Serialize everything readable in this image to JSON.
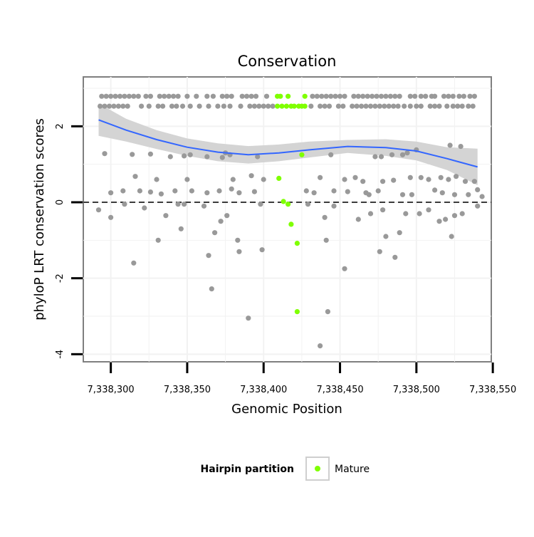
{
  "chart_data": {
    "type": "scatter",
    "title": "Conservation",
    "xlabel": "Genomic Position",
    "ylabel": "phyloP LRT conservation scores",
    "xlim": [
      7338282,
      7338549
    ],
    "ylim": [
      -4.2,
      3.3
    ],
    "x_ticks": [
      {
        "value": 7338300,
        "label": "7,338,300"
      },
      {
        "value": 7338350,
        "label": "7,338,350"
      },
      {
        "value": 7338400,
        "label": "7,338,400"
      },
      {
        "value": 7338450,
        "label": "7,338,450"
      },
      {
        "value": 7338500,
        "label": "7,338,500"
      },
      {
        "value": 7338550,
        "label": "7,338,550"
      }
    ],
    "y_ticks": [
      {
        "value": -4,
        "label": "-4"
      },
      {
        "value": -2,
        "label": "-2"
      },
      {
        "value": 0,
        "label": "0"
      },
      {
        "value": 2,
        "label": "2"
      }
    ],
    "grid": true,
    "reference_line": {
      "y": 0,
      "style": "dashed"
    },
    "legend": {
      "title": "Hairpin partition",
      "position": "bottom",
      "entries": [
        {
          "label": "Mature",
          "color": "#7FFF00"
        }
      ]
    },
    "colors": {
      "other": "#999999",
      "mature": "#7FFF00",
      "smooth": "#3366FF",
      "ribbon": "#d4d4d4"
    },
    "smooth": {
      "x": [
        7338292,
        7338310,
        7338330,
        7338350,
        7338370,
        7338390,
        7338410,
        7338430,
        7338455,
        7338480,
        7338500,
        7338520,
        7338540
      ],
      "y": [
        2.17,
        1.9,
        1.65,
        1.45,
        1.32,
        1.25,
        1.3,
        1.38,
        1.47,
        1.44,
        1.35,
        1.15,
        0.93
      ],
      "lower": [
        1.75,
        1.6,
        1.4,
        1.22,
        1.08,
        1.02,
        1.08,
        1.18,
        1.3,
        1.22,
        1.1,
        0.85,
        0.45
      ],
      "upper": [
        2.6,
        2.2,
        1.9,
        1.68,
        1.55,
        1.48,
        1.52,
        1.6,
        1.64,
        1.66,
        1.6,
        1.45,
        1.41
      ]
    },
    "series": [
      {
        "partition": "other",
        "x": [
          7338294,
          7338297,
          7338300,
          7338303,
          7338306,
          7338309,
          7338312,
          7338315,
          7338318,
          7338323,
          7338326,
          7338332,
          7338335,
          7338338,
          7338341,
          7338344,
          7338350,
          7338356,
          7338363,
          7338367,
          7338373,
          7338376,
          7338379,
          7338386,
          7338389,
          7338392,
          7338395,
          7338402,
          7338432,
          7338435,
          7338438,
          7338441,
          7338444,
          7338447,
          7338450,
          7338453,
          7338459,
          7338462,
          7338465,
          7338468,
          7338471,
          7338474,
          7338477,
          7338480,
          7338483,
          7338486,
          7338489,
          7338496,
          7338499,
          7338503,
          7338506,
          7338510,
          7338512,
          7338518,
          7338521,
          7338524,
          7338528,
          7338531,
          7338535,
          7338538,
          7338293,
          7338296,
          7338299,
          7338302,
          7338305,
          7338308,
          7338311,
          7338320,
          7338325,
          7338331,
          7338334,
          7338340,
          7338343,
          7338347,
          7338352,
          7338358,
          7338364,
          7338370,
          7338374,
          7338378,
          7338385,
          7338391,
          7338394,
          7338397,
          7338400,
          7338403,
          7338406,
          7338431,
          7338437,
          7338440,
          7338443,
          7338449,
          7338452,
          7338458,
          7338461,
          7338464,
          7338467,
          7338470,
          7338473,
          7338476,
          7338479,
          7338482,
          7338485,
          7338488,
          7338492,
          7338496,
          7338500,
          7338503,
          7338509,
          7338512,
          7338515,
          7338520,
          7338524,
          7338527,
          7338530,
          7338534,
          7338537,
          7338296,
          7338314,
          7338326,
          7338339,
          7338348,
          7338352,
          7338363,
          7338373,
          7338375,
          7338378,
          7338396,
          7338444,
          7338473,
          7338477,
          7338484,
          7338491,
          7338494,
          7338500,
          7338522,
          7338529,
          7338316,
          7338330,
          7338350,
          7338380,
          7338392,
          7338400,
          7338437,
          7338453,
          7338460,
          7338465,
          7338478,
          7338485,
          7338496,
          7338503,
          7338508,
          7338516,
          7338521,
          7338526,
          7338532,
          7338538,
          7338540,
          7338300,
          7338308,
          7338319,
          7338326,
          7338333,
          7338342,
          7338353,
          7338363,
          7338371,
          7338379,
          7338384,
          7338394,
          7338428,
          7338433,
          7338446,
          7338455,
          7338467,
          7338469,
          7338475,
          7338491,
          7338497,
          7338512,
          7338517,
          7338525,
          7338534,
          7338543,
          7338292,
          7338300,
          7338309,
          7338322,
          7338336,
          7338344,
          7338348,
          7338361,
          7338372,
          7338376,
          7338398,
          7338429,
          7338440,
          7338446,
          7338462,
          7338470,
          7338478,
          7338480,
          7338489,
          7338493,
          7338502,
          7338508,
          7338515,
          7338519,
          7338525,
          7338530,
          7338540,
          7338331,
          7338346,
          7338368,
          7338384,
          7338399,
          7338441,
          7338476,
          7338486,
          7338523,
          7338315,
          7338364,
          7338383,
          7338453,
          7338366,
          7338390,
          7338442,
          7338437
        ],
        "y": [
          2.79,
          2.79,
          2.79,
          2.79,
          2.79,
          2.79,
          2.79,
          2.79,
          2.79,
          2.79,
          2.79,
          2.79,
          2.79,
          2.79,
          2.79,
          2.79,
          2.79,
          2.79,
          2.79,
          2.79,
          2.79,
          2.79,
          2.79,
          2.79,
          2.79,
          2.79,
          2.79,
          2.79,
          2.79,
          2.79,
          2.79,
          2.79,
          2.79,
          2.79,
          2.79,
          2.79,
          2.79,
          2.79,
          2.79,
          2.79,
          2.79,
          2.79,
          2.79,
          2.79,
          2.79,
          2.79,
          2.79,
          2.79,
          2.79,
          2.79,
          2.79,
          2.79,
          2.79,
          2.79,
          2.79,
          2.79,
          2.79,
          2.79,
          2.79,
          2.79,
          2.53,
          2.53,
          2.53,
          2.53,
          2.53,
          2.53,
          2.53,
          2.53,
          2.53,
          2.53,
          2.53,
          2.53,
          2.53,
          2.53,
          2.53,
          2.53,
          2.53,
          2.53,
          2.53,
          2.53,
          2.53,
          2.53,
          2.53,
          2.53,
          2.53,
          2.53,
          2.53,
          2.53,
          2.53,
          2.53,
          2.53,
          2.53,
          2.53,
          2.53,
          2.53,
          2.53,
          2.53,
          2.53,
          2.53,
          2.53,
          2.53,
          2.53,
          2.53,
          2.53,
          2.53,
          2.53,
          2.53,
          2.53,
          2.53,
          2.53,
          2.53,
          2.53,
          2.53,
          2.53,
          2.53,
          2.53,
          2.53,
          1.28,
          1.26,
          1.27,
          1.2,
          1.22,
          1.25,
          1.2,
          1.18,
          1.3,
          1.25,
          1.2,
          1.25,
          1.2,
          1.2,
          1.25,
          1.25,
          1.3,
          1.38,
          1.5,
          1.47,
          0.68,
          0.6,
          0.6,
          0.6,
          0.7,
          0.6,
          0.65,
          0.6,
          0.65,
          0.55,
          0.55,
          0.58,
          0.65,
          0.65,
          0.6,
          0.65,
          0.6,
          0.68,
          0.55,
          0.55,
          0.33,
          0.25,
          0.3,
          0.3,
          0.27,
          0.22,
          0.3,
          0.3,
          0.25,
          0.3,
          0.35,
          0.25,
          0.28,
          0.3,
          0.25,
          0.3,
          0.28,
          0.25,
          0.2,
          0.3,
          0.2,
          0.2,
          0.32,
          0.25,
          0.2,
          0.2,
          0.15,
          -0.2,
          -0.4,
          -0.05,
          -0.15,
          -0.35,
          -0.05,
          -0.05,
          -0.1,
          -0.5,
          -0.35,
          -0.05,
          -0.05,
          -0.4,
          -0.1,
          -0.45,
          -0.3,
          -0.2,
          -0.9,
          -0.8,
          -0.3,
          -0.3,
          -0.2,
          -0.5,
          -0.45,
          -0.35,
          -0.3,
          -0.1,
          -1.0,
          -0.7,
          -0.8,
          -1.3,
          -1.25,
          -1.0,
          -1.3,
          -1.45,
          -0.9,
          -1.6,
          -1.4,
          -1.0,
          -1.75,
          -2.28,
          -3.05,
          -2.88,
          -3.78
        ]
      },
      {
        "partition": "mature",
        "name": "Mature",
        "x": [
          7338409,
          7338411,
          7338416,
          7338427,
          7338409,
          7338412,
          7338415,
          7338418,
          7338420,
          7338423,
          7338425,
          7338427,
          7338410,
          7338413,
          7338416,
          7338418,
          7338422,
          7338425,
          7338422
        ],
        "y": [
          2.79,
          2.79,
          2.79,
          2.79,
          2.53,
          2.53,
          2.53,
          2.53,
          2.53,
          2.53,
          2.53,
          2.53,
          0.63,
          0.02,
          -0.05,
          -0.58,
          -1.08,
          1.25,
          -2.88
        ]
      }
    ]
  }
}
